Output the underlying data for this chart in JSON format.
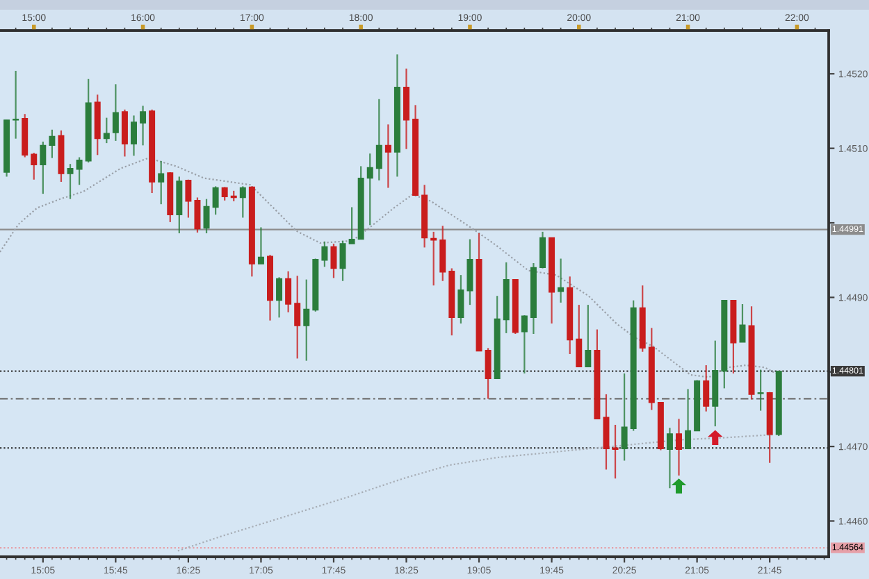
{
  "chart_data": {
    "type": "candlestick",
    "xlim": [
      14.689,
      22.291
    ],
    "xticks": [
      {
        "value": 15.0833,
        "label": "15:05"
      },
      {
        "value": 15.75,
        "label": "15:45"
      },
      {
        "value": 16.4167,
        "label": "16:25"
      },
      {
        "value": 17.0833,
        "label": "17:05"
      },
      {
        "value": 17.75,
        "label": "17:45"
      },
      {
        "value": 18.4167,
        "label": "18:25"
      },
      {
        "value": 19.0833,
        "label": "19:05"
      },
      {
        "value": 19.75,
        "label": "19:45"
      },
      {
        "value": 20.4167,
        "label": "20:25"
      },
      {
        "value": 21.0833,
        "label": "21:05"
      },
      {
        "value": 21.75,
        "label": "21:45"
      }
    ],
    "x2lim": [
      14.689,
      22.291
    ],
    "x2ticks": [
      {
        "value": 15,
        "label": "15:00"
      },
      {
        "value": 16,
        "label": "16:00"
      },
      {
        "value": 17,
        "label": "17:00"
      },
      {
        "value": 18,
        "label": "18:00"
      },
      {
        "value": 19,
        "label": "19:00"
      },
      {
        "value": 20,
        "label": "20:00"
      },
      {
        "value": 21,
        "label": "21:00"
      },
      {
        "value": 22,
        "label": "22:00"
      }
    ],
    "ylim": [
      1.44552,
      1.45258
    ],
    "yticks": [
      {
        "value": 1.446,
        "label": "1.4460"
      },
      {
        "value": 1.447,
        "label": "1.4470"
      },
      {
        "value": 1.448,
        "label": null
      },
      {
        "value": 1.449,
        "label": "1.4490"
      },
      {
        "value": 1.45,
        "label": null
      },
      {
        "value": 1.451,
        "label": "1.4510"
      },
      {
        "value": 1.452,
        "label": "1.4520"
      }
    ],
    "ref_lines": [
      {
        "axis": "y",
        "value": 1.44991,
        "label": "1.44991",
        "color": "#8c8c8c",
        "line_style": "solid"
      },
      {
        "axis": "y",
        "value": 1.44801,
        "label": "1.44801",
        "color": "#3a3a3a",
        "line_style": "dotted"
      },
      {
        "axis": "y",
        "value": 1.44764,
        "color": "#707070",
        "line_style": "dashed"
      },
      {
        "axis": "y",
        "value": 1.44698,
        "color": "#202020",
        "line_style": "dotted"
      },
      {
        "axis": "y",
        "value": 1.44564,
        "label": "1.44564",
        "color": "#e6a0a8",
        "line_style": "dotted"
      }
    ],
    "series": [
      {
        "type": "line",
        "color": "#9aa0a8",
        "line_style": "dotted",
        "x": [
          14.689,
          14.858,
          15.029,
          15.241,
          15.454,
          15.795,
          16.05,
          16.305,
          16.56,
          16.985,
          17.198,
          17.409,
          17.626,
          17.92,
          18.091,
          18.302,
          18.473,
          18.643,
          19.026,
          19.239,
          19.536,
          19.791,
          20.088,
          20.343,
          20.514,
          20.684,
          20.853,
          21.024,
          21.194,
          21.364,
          21.534,
          21.704,
          21.832
        ],
        "values": [
          1.44961,
          1.44998,
          1.4502,
          1.45032,
          1.45042,
          1.45073,
          1.45087,
          1.45076,
          1.4506,
          1.45051,
          1.4502,
          1.44989,
          1.44973,
          1.44976,
          1.44995,
          1.4502,
          1.45038,
          1.45029,
          1.44992,
          1.4497,
          1.44936,
          1.4493,
          1.44902,
          1.44865,
          1.44846,
          1.44834,
          1.44815,
          1.44796,
          1.44793,
          1.44806,
          1.44809,
          1.44806,
          1.44796
        ]
      },
      {
        "type": "line",
        "color": "#a8aeb6",
        "line_style": "dotted",
        "x": [
          16.321,
          16.73,
          17.24,
          17.878,
          18.388,
          18.812,
          19.239,
          19.663,
          20.088,
          20.514,
          20.939,
          21.364,
          21.79
        ],
        "values": [
          1.4456,
          1.4458,
          1.44603,
          1.44632,
          1.44657,
          1.44675,
          1.44685,
          1.44691,
          1.44697,
          1.44703,
          1.44709,
          1.44712,
          1.44716
        ]
      },
      {
        "x": [
          14.75,
          14.8333,
          14.9167,
          15,
          15.0833,
          15.1667,
          15.25,
          15.3333,
          15.4167,
          15.5,
          15.5833,
          15.6667,
          15.75,
          15.8333,
          15.9167,
          16,
          16.0833,
          16.1667,
          16.25,
          16.3333,
          16.4167,
          16.5,
          16.5833,
          16.6667,
          16.75,
          16.8333,
          16.9167,
          17,
          17.0833,
          17.1667,
          17.25,
          17.3333,
          17.4167,
          17.5,
          17.5833,
          17.6667,
          17.75,
          17.8333,
          17.9167,
          18,
          18.0833,
          18.1667,
          18.25,
          18.3333,
          18.4167,
          18.5,
          18.5833,
          18.6667,
          18.75,
          18.8333,
          18.9167,
          19,
          19.0833,
          19.1667,
          19.25,
          19.3333,
          19.4167,
          19.5,
          19.5833,
          19.6667,
          19.75,
          19.8333,
          19.9167,
          20,
          20.0833,
          20.1667,
          20.25,
          20.3333,
          20.4167,
          20.5,
          20.5833,
          20.6667,
          20.75,
          20.8333,
          20.9167,
          21,
          21.0833,
          21.1667,
          21.25,
          21.3333,
          21.4167,
          21.5,
          21.5833,
          21.6667,
          21.75,
          21.8333
        ],
        "ohlc": [
          [
            1.45068,
            1.45138,
            1.45062,
            1.45138
          ],
          [
            1.45138,
            1.45204,
            1.45113,
            1.45139
          ],
          [
            1.4514,
            1.45146,
            1.45088,
            1.45091
          ],
          [
            1.45092,
            1.45094,
            1.45058,
            1.45078
          ],
          [
            1.45078,
            1.45109,
            1.45039,
            1.45104
          ],
          [
            1.45104,
            1.45125,
            1.45087,
            1.45116
          ],
          [
            1.45117,
            1.45124,
            1.45055,
            1.45066
          ],
          [
            1.45066,
            1.45079,
            1.45032,
            1.45073
          ],
          [
            1.45072,
            1.45088,
            1.45051,
            1.45084
          ],
          [
            1.45083,
            1.45193,
            1.45081,
            1.45161
          ],
          [
            1.45162,
            1.45172,
            1.45091,
            1.45113
          ],
          [
            1.45113,
            1.45141,
            1.45107,
            1.4512
          ],
          [
            1.45121,
            1.45186,
            1.4511,
            1.45148
          ],
          [
            1.45149,
            1.45152,
            1.45089,
            1.45106
          ],
          [
            1.45106,
            1.45144,
            1.4509,
            1.45135
          ],
          [
            1.45134,
            1.45157,
            1.45104,
            1.45149
          ],
          [
            1.4515,
            1.45152,
            1.4504,
            1.45055
          ],
          [
            1.45055,
            1.45083,
            1.45025,
            1.45066
          ],
          [
            1.45067,
            1.45068,
            1.45001,
            1.45011
          ],
          [
            1.45011,
            1.45062,
            1.44986,
            1.45056
          ],
          [
            1.45057,
            1.45058,
            1.45007,
            1.45029
          ],
          [
            1.4503,
            1.45034,
            1.44987,
            1.44992
          ],
          [
            1.44993,
            1.45032,
            1.44986,
            1.45022
          ],
          [
            1.45021,
            1.45049,
            1.45011,
            1.45047
          ],
          [
            1.45047,
            1.45048,
            1.4503,
            1.45035
          ],
          [
            1.45036,
            1.45043,
            1.45029,
            1.45034
          ],
          [
            1.45034,
            1.45049,
            1.45007,
            1.45047
          ],
          [
            1.45048,
            1.45049,
            1.44928,
            1.44945
          ],
          [
            1.44945,
            1.44994,
            1.44945,
            1.44954
          ],
          [
            1.44955,
            1.44957,
            1.44869,
            1.44896
          ],
          [
            1.44896,
            1.44927,
            1.44873,
            1.44925
          ],
          [
            1.44925,
            1.44935,
            1.4488,
            1.44891
          ],
          [
            1.44892,
            1.44929,
            1.44818,
            1.44862
          ],
          [
            1.44862,
            1.44924,
            1.44815,
            1.44884
          ],
          [
            1.44883,
            1.44952,
            1.44881,
            1.44951
          ],
          [
            1.4495,
            1.44975,
            1.44941,
            1.44968
          ],
          [
            1.44968,
            1.44972,
            1.44926,
            1.44939
          ],
          [
            1.44939,
            1.44976,
            1.44922,
            1.44972
          ],
          [
            1.44972,
            1.45021,
            1.44972,
            1.44978
          ],
          [
            1.44978,
            1.45076,
            1.44978,
            1.4506
          ],
          [
            1.4506,
            1.45093,
            1.44997,
            1.45074
          ],
          [
            1.45073,
            1.45166,
            1.45057,
            1.45104
          ],
          [
            1.45104,
            1.45132,
            1.45047,
            1.45095
          ],
          [
            1.45095,
            1.45226,
            1.45062,
            1.45182
          ],
          [
            1.45182,
            1.45207,
            1.45099,
            1.45138
          ],
          [
            1.45139,
            1.45158,
            1.45037,
            1.45037
          ],
          [
            1.45037,
            1.45051,
            1.44967,
            1.4498
          ],
          [
            1.44979,
            1.44988,
            1.44916,
            1.44977
          ],
          [
            1.44977,
            1.44996,
            1.44922,
            1.44934
          ],
          [
            1.44935,
            1.44939,
            1.44849,
            1.44873
          ],
          [
            1.44873,
            1.4493,
            1.44865,
            1.4491
          ],
          [
            1.44909,
            1.44978,
            1.4489,
            1.44951
          ],
          [
            1.44951,
            1.44986,
            1.44828,
            1.44828
          ],
          [
            1.44829,
            1.44832,
            1.44764,
            1.44791
          ],
          [
            1.44791,
            1.44902,
            1.44791,
            1.44871
          ],
          [
            1.4487,
            1.44947,
            1.44852,
            1.44924
          ],
          [
            1.44924,
            1.44924,
            1.44851,
            1.44853
          ],
          [
            1.44854,
            1.44876,
            1.44798,
            1.44875
          ],
          [
            1.44873,
            1.44946,
            1.44851,
            1.4494
          ],
          [
            1.4494,
            1.44988,
            1.44939,
            1.4498
          ],
          [
            1.4498,
            1.4498,
            1.44865,
            1.44907
          ],
          [
            1.44908,
            1.44952,
            1.44893,
            1.44913
          ],
          [
            1.44913,
            1.44928,
            1.44824,
            1.44843
          ],
          [
            1.44844,
            1.4489,
            1.44807,
            1.44807
          ],
          [
            1.44807,
            1.4489,
            1.44807,
            1.44829
          ],
          [
            1.44829,
            1.44857,
            1.44737,
            1.44737
          ],
          [
            1.44739,
            1.4477,
            1.44669,
            1.44697
          ],
          [
            1.44698,
            1.44729,
            1.44657,
            1.44696
          ],
          [
            1.44697,
            1.44798,
            1.44681,
            1.44726
          ],
          [
            1.44724,
            1.44896,
            1.44721,
            1.44886
          ],
          [
            1.44886,
            1.44916,
            1.44827,
            1.44832
          ],
          [
            1.44833,
            1.44859,
            1.44749,
            1.44759
          ],
          [
            1.44759,
            1.44759,
            1.44695,
            1.44697
          ],
          [
            1.44696,
            1.44725,
            1.44644,
            1.44717
          ],
          [
            1.44717,
            1.44737,
            1.44661,
            1.44696
          ],
          [
            1.44697,
            1.44777,
            1.44697,
            1.44721
          ],
          [
            1.44721,
            1.44789,
            1.44721,
            1.44788
          ],
          [
            1.44788,
            1.44809,
            1.44747,
            1.44754
          ],
          [
            1.44754,
            1.44842,
            1.44727,
            1.44802
          ],
          [
            1.44801,
            1.44896,
            1.44778,
            1.44896
          ],
          [
            1.44896,
            1.44896,
            1.44798,
            1.44839
          ],
          [
            1.4484,
            1.44891,
            1.4484,
            1.44863
          ],
          [
            1.44862,
            1.44888,
            1.44763,
            1.4477
          ],
          [
            1.44771,
            1.44803,
            1.44748,
            1.44772
          ],
          [
            1.44772,
            1.44773,
            1.44678,
            1.44716
          ],
          [
            1.44716,
            1.44801,
            1.44714,
            1.44801
          ]
        ],
        "colors": [
          "#2b7d3c",
          "#2b7d3c",
          "#c91d1d",
          "#c91d1d",
          "#2b7d3c",
          "#2b7d3c",
          "#c91d1d",
          "#2b7d3c",
          "#2b7d3c",
          "#2b7d3c",
          "#c91d1d",
          "#2b7d3c",
          "#2b7d3c",
          "#c91d1d",
          "#2b7d3c",
          "#2b7d3c",
          "#c91d1d",
          "#2b7d3c",
          "#c91d1d",
          "#2b7d3c",
          "#c91d1d",
          "#c91d1d",
          "#2b7d3c",
          "#2b7d3c",
          "#c91d1d",
          "#c91d1d",
          "#2b7d3c",
          "#c91d1d",
          "#2b7d3c",
          "#c91d1d",
          "#2b7d3c",
          "#c91d1d",
          "#c91d1d",
          "#2b7d3c",
          "#2b7d3c",
          "#2b7d3c",
          "#c91d1d",
          "#2b7d3c",
          "#2b7d3c",
          "#2b7d3c",
          "#2b7d3c",
          "#2b7d3c",
          "#c91d1d",
          "#2b7d3c",
          "#c91d1d",
          "#c91d1d",
          "#c91d1d",
          "#c91d1d",
          "#c91d1d",
          "#c91d1d",
          "#2b7d3c",
          "#2b7d3c",
          "#c91d1d",
          "#c91d1d",
          "#2b7d3c",
          "#2b7d3c",
          "#c91d1d",
          "#2b7d3c",
          "#2b7d3c",
          "#2b7d3c",
          "#c91d1d",
          "#2b7d3c",
          "#c91d1d",
          "#c91d1d",
          "#2b7d3c",
          "#c91d1d",
          "#c91d1d",
          "#c91d1d",
          "#2b7d3c",
          "#2b7d3c",
          "#c91d1d",
          "#c91d1d",
          "#c91d1d",
          "#2b7d3c",
          "#c91d1d",
          "#2b7d3c",
          "#2b7d3c",
          "#c91d1d",
          "#2b7d3c",
          "#2b7d3c",
          "#c91d1d",
          "#2b7d3c",
          "#c91d1d",
          "#2b7d3c",
          "#c91d1d",
          "#2b7d3c"
        ]
      },
      {
        "type": "scatter",
        "marker": "triangle",
        "x": [
          20.9167,
          21.25
        ],
        "values": [
          1.44647,
          1.44712
        ],
        "colors": [
          "#1f9a2c",
          "#d41a2a"
        ]
      }
    ]
  }
}
